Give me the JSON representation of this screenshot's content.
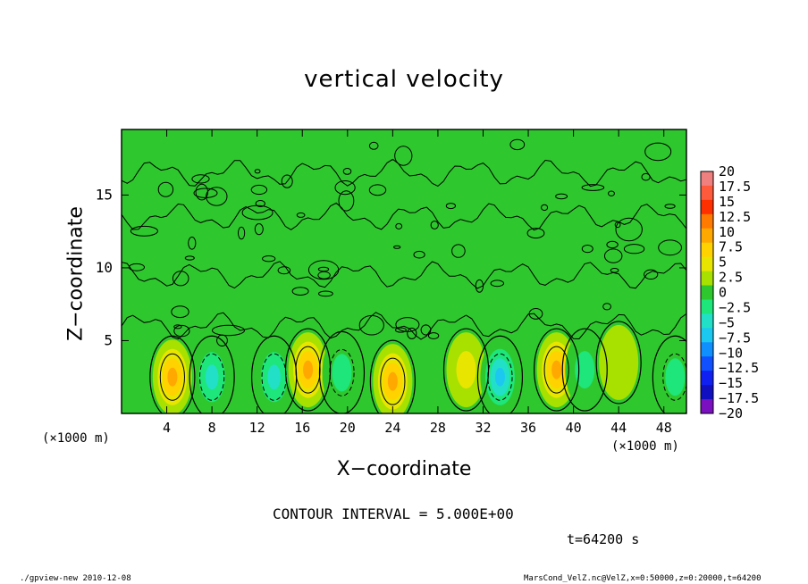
{
  "chart_data": {
    "type": "heatmap",
    "title": "vertical velocity",
    "xlabel": "X−coordinate",
    "ylabel": "Z−coordinate",
    "x_unit_left": "(×1000 m)",
    "x_unit_right": "(×1000 m)",
    "xlim": [
      0,
      50
    ],
    "ylim": [
      0,
      19.5
    ],
    "x_ticks": [
      4,
      8,
      12,
      16,
      20,
      24,
      28,
      32,
      36,
      40,
      44,
      48
    ],
    "y_ticks": [
      5,
      10,
      15
    ],
    "colorbar": {
      "labels": [
        "20",
        "17.5",
        "15",
        "12.5",
        "10",
        "7.5",
        "5",
        "2.5",
        "0",
        "−2.5",
        "−5",
        "−7.5",
        "−10",
        "−12.5",
        "−15",
        "−17.5",
        "−20"
      ],
      "levels": [
        20,
        17.5,
        15,
        12.5,
        10,
        7.5,
        5,
        2.5,
        0,
        -2.5,
        -5,
        -7.5,
        -10,
        -12.5,
        -15,
        -17.5,
        -20
      ],
      "colors": [
        "#f07f7f",
        "#ff5a3c",
        "#ff3000",
        "#ff7a00",
        "#ffa800",
        "#ffd200",
        "#e8e600",
        "#a8e000",
        "#2ec82e",
        "#1ee67a",
        "#22e0c8",
        "#1cc8f0",
        "#1090ff",
        "#1050ff",
        "#1020f0",
        "#1010c0",
        "#7a10c0"
      ]
    },
    "cells": [
      {
        "x": 4.5,
        "z": 2.5,
        "value": 8,
        "sign": "positive"
      },
      {
        "x": 8.0,
        "z": 2.5,
        "value": -6,
        "sign": "negative"
      },
      {
        "x": 13.5,
        "z": 2.5,
        "value": -7,
        "sign": "negative"
      },
      {
        "x": 16.5,
        "z": 3.0,
        "value": 9,
        "sign": "positive"
      },
      {
        "x": 19.5,
        "z": 2.8,
        "value": -5,
        "sign": "negative"
      },
      {
        "x": 24.0,
        "z": 2.2,
        "value": 9,
        "sign": "positive"
      },
      {
        "x": 30.5,
        "z": 3.0,
        "value": 3,
        "sign": "positive"
      },
      {
        "x": 33.5,
        "z": 2.5,
        "value": -8,
        "sign": "negative"
      },
      {
        "x": 38.5,
        "z": 3.0,
        "value": 8,
        "sign": "positive"
      },
      {
        "x": 41.0,
        "z": 3.0,
        "value": -3,
        "sign": "negative"
      },
      {
        "x": 44.0,
        "z": 3.5,
        "value": 2,
        "sign": "positive"
      },
      {
        "x": 49.0,
        "z": 2.5,
        "value": -5,
        "sign": "negative"
      }
    ],
    "contour_interval": "CONTOUR INTERVAL = 5.000E+00",
    "time": "t=64200 s",
    "grid": false
  },
  "footer": {
    "left": "./gpview-new  2010-12-08",
    "right": "MarsCond_VelZ.nc@VelZ,x=0:50000,z=0:20000,t=64200"
  }
}
